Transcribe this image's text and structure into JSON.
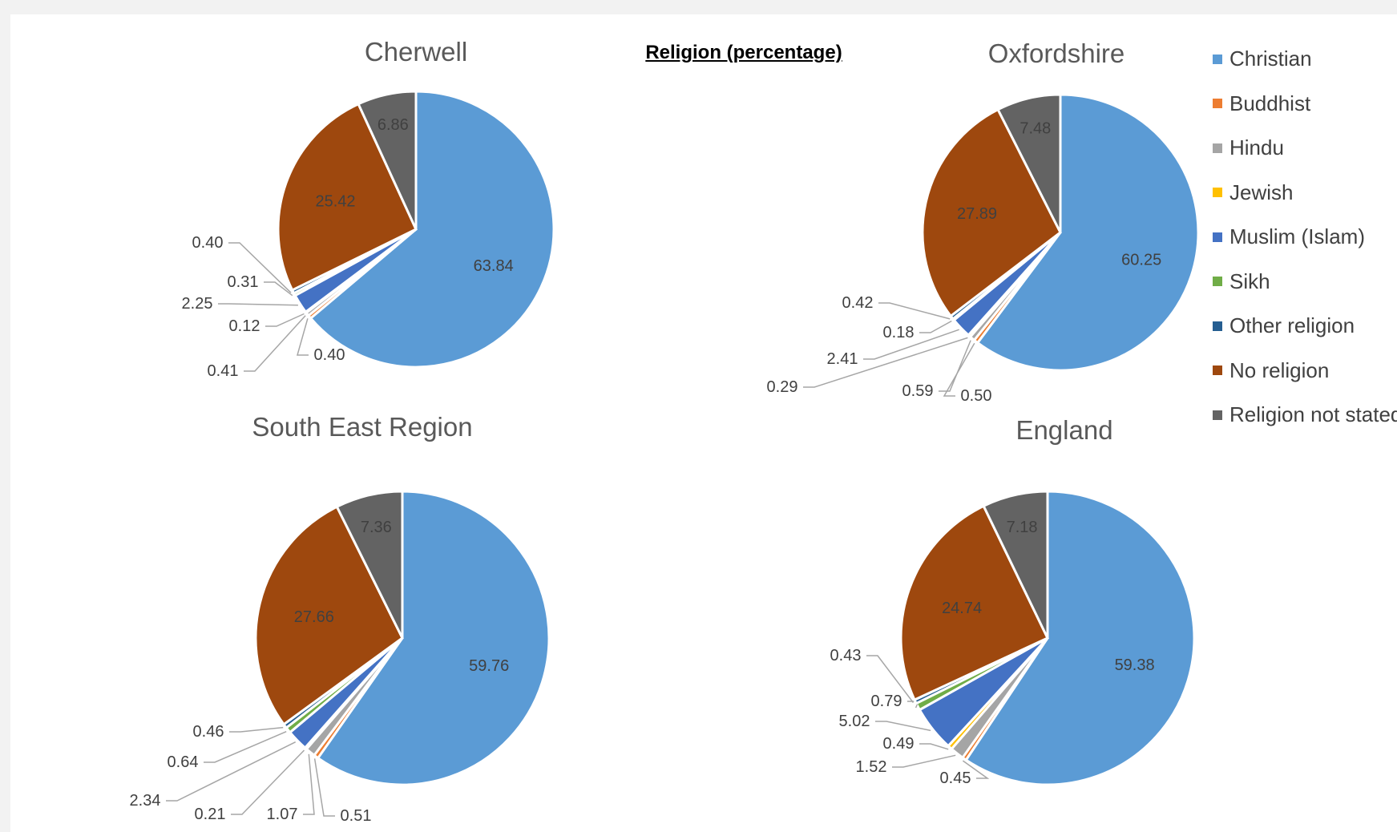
{
  "title": "Religion (percentage)",
  "legend_entries": [
    {
      "name": "Christian",
      "color": "#5b9bd5"
    },
    {
      "name": "Buddhist",
      "color": "#ed7d31"
    },
    {
      "name": "Hindu",
      "color": "#a5a5a5"
    },
    {
      "name": "Jewish",
      "color": "#ffc000"
    },
    {
      "name": "Muslim (Islam)",
      "color": "#4472c4"
    },
    {
      "name": "Sikh",
      "color": "#70ad47"
    },
    {
      "name": "Other religion",
      "color": "#255e91"
    },
    {
      "name": "No religion",
      "color": "#9e480e"
    },
    {
      "name": "Religion not stated",
      "color": "#636363"
    }
  ],
  "chart_data": [
    {
      "type": "pie",
      "title": "Cherwell",
      "categories": [
        "Christian",
        "Buddhist",
        "Hindu",
        "Jewish",
        "Muslim (Islam)",
        "Sikh",
        "Other religion",
        "No religion",
        "Religion not stated"
      ],
      "values": [
        63.84,
        0.4,
        0.41,
        0.12,
        2.25,
        0.31,
        0.4,
        25.42,
        6.86
      ],
      "labels": [
        "63.84",
        "0.40",
        "0.41",
        "0.12",
        "2.25",
        "0.31",
        "0.40",
        "25.42",
        "6.86"
      ]
    },
    {
      "type": "pie",
      "title": "Oxfordshire",
      "categories": [
        "Christian",
        "Buddhist",
        "Hindu",
        "Jewish",
        "Muslim (Islam)",
        "Sikh",
        "Other religion",
        "No religion",
        "Religion not stated"
      ],
      "values": [
        60.25,
        0.5,
        0.59,
        0.29,
        2.41,
        0.18,
        0.42,
        27.89,
        7.48
      ],
      "labels": [
        "60.25",
        "0.50",
        "0.59",
        "0.29",
        "2.41",
        "0.18",
        "0.42",
        "27.89",
        "7.48"
      ]
    },
    {
      "type": "pie",
      "title": "South East Region",
      "categories": [
        "Christian",
        "Buddhist",
        "Hindu",
        "Jewish",
        "Muslim (Islam)",
        "Sikh",
        "Other religion",
        "No religion",
        "Religion not stated"
      ],
      "values": [
        59.76,
        0.51,
        1.07,
        0.21,
        2.34,
        0.64,
        0.46,
        27.66,
        7.36
      ],
      "labels": [
        "59.76",
        "0.51",
        "1.07",
        "0.21",
        "2.34",
        "0.64",
        "0.46",
        "27.66",
        "7.36"
      ]
    },
    {
      "type": "pie",
      "title": "England",
      "categories": [
        "Christian",
        "Buddhist",
        "Hindu",
        "Jewish",
        "Muslim (Islam)",
        "Sikh",
        "Other religion",
        "No religion",
        "Religion not stated"
      ],
      "values": [
        59.38,
        0.45,
        1.52,
        0.49,
        5.02,
        0.79,
        0.43,
        24.74,
        7.18
      ],
      "labels": [
        "59.38",
        "0.45",
        "1.52",
        "0.49",
        "5.02",
        "0.79",
        "0.43",
        "24.74",
        "7.18"
      ]
    }
  ]
}
